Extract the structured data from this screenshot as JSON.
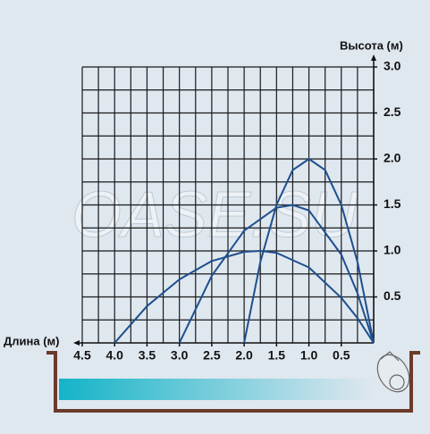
{
  "chart_data": {
    "type": "line",
    "x_label": "Длина (м)",
    "y_label": "Высота (м)",
    "watermark": "OASE.SU",
    "xlim": [
      4.5,
      0
    ],
    "ylim": [
      0,
      3
    ],
    "xticks": [
      4.5,
      {
        "value": 4,
        "label": "4.0"
      },
      3.5,
      {
        "value": 3,
        "label": "3.0"
      },
      2.5,
      {
        "value": 2,
        "label": "2.0"
      },
      1.5,
      {
        "value": 1,
        "label": "1.0"
      },
      0.5
    ],
    "yticks": [
      0.5,
      {
        "value": 1,
        "label": "1.0"
      },
      1.5,
      {
        "value": 2,
        "label": "2.0"
      },
      2.5,
      {
        "value": 3,
        "label": "3.0"
      }
    ],
    "xgrid": [
      4.5,
      4.25,
      4,
      3.75,
      3.5,
      3.25,
      3,
      2.75,
      2.5,
      2.25,
      2,
      1.75,
      1.5,
      1.25,
      1,
      0.75,
      0.5,
      0.25,
      0
    ],
    "ygrid": [
      0.25,
      0.5,
      0.75,
      1,
      1.25,
      1.5,
      1.75,
      2,
      2.25,
      2.5,
      2.75,
      3
    ],
    "grid": true,
    "grid_color": "#1a1a1a",
    "series": [
      {
        "color": "#1d4f8e",
        "x": [
          4,
          3.5,
          3,
          2.5,
          2,
          1.75,
          1.5,
          1,
          0.5,
          0.25,
          0
        ],
        "values": [
          0,
          0.4,
          0.69,
          0.89,
          0.99,
          1,
          0.98,
          0.82,
          0.49,
          0.27,
          0
        ]
      },
      {
        "color": "#1d4f8e",
        "x": [
          3,
          2.5,
          2,
          1.5,
          1.25,
          1,
          0.5,
          0.25,
          0
        ],
        "values": [
          0,
          0.73,
          1.22,
          1.47,
          1.5,
          1.44,
          0.96,
          0.54,
          0
        ]
      },
      {
        "color": "#1d4f8e",
        "x": [
          2,
          1.75,
          1.5,
          1.25,
          1,
          0.75,
          0.5,
          0.25,
          0
        ],
        "values": [
          0,
          0.88,
          1.5,
          1.88,
          2,
          1.88,
          1.5,
          0.88,
          0
        ]
      }
    ]
  }
}
